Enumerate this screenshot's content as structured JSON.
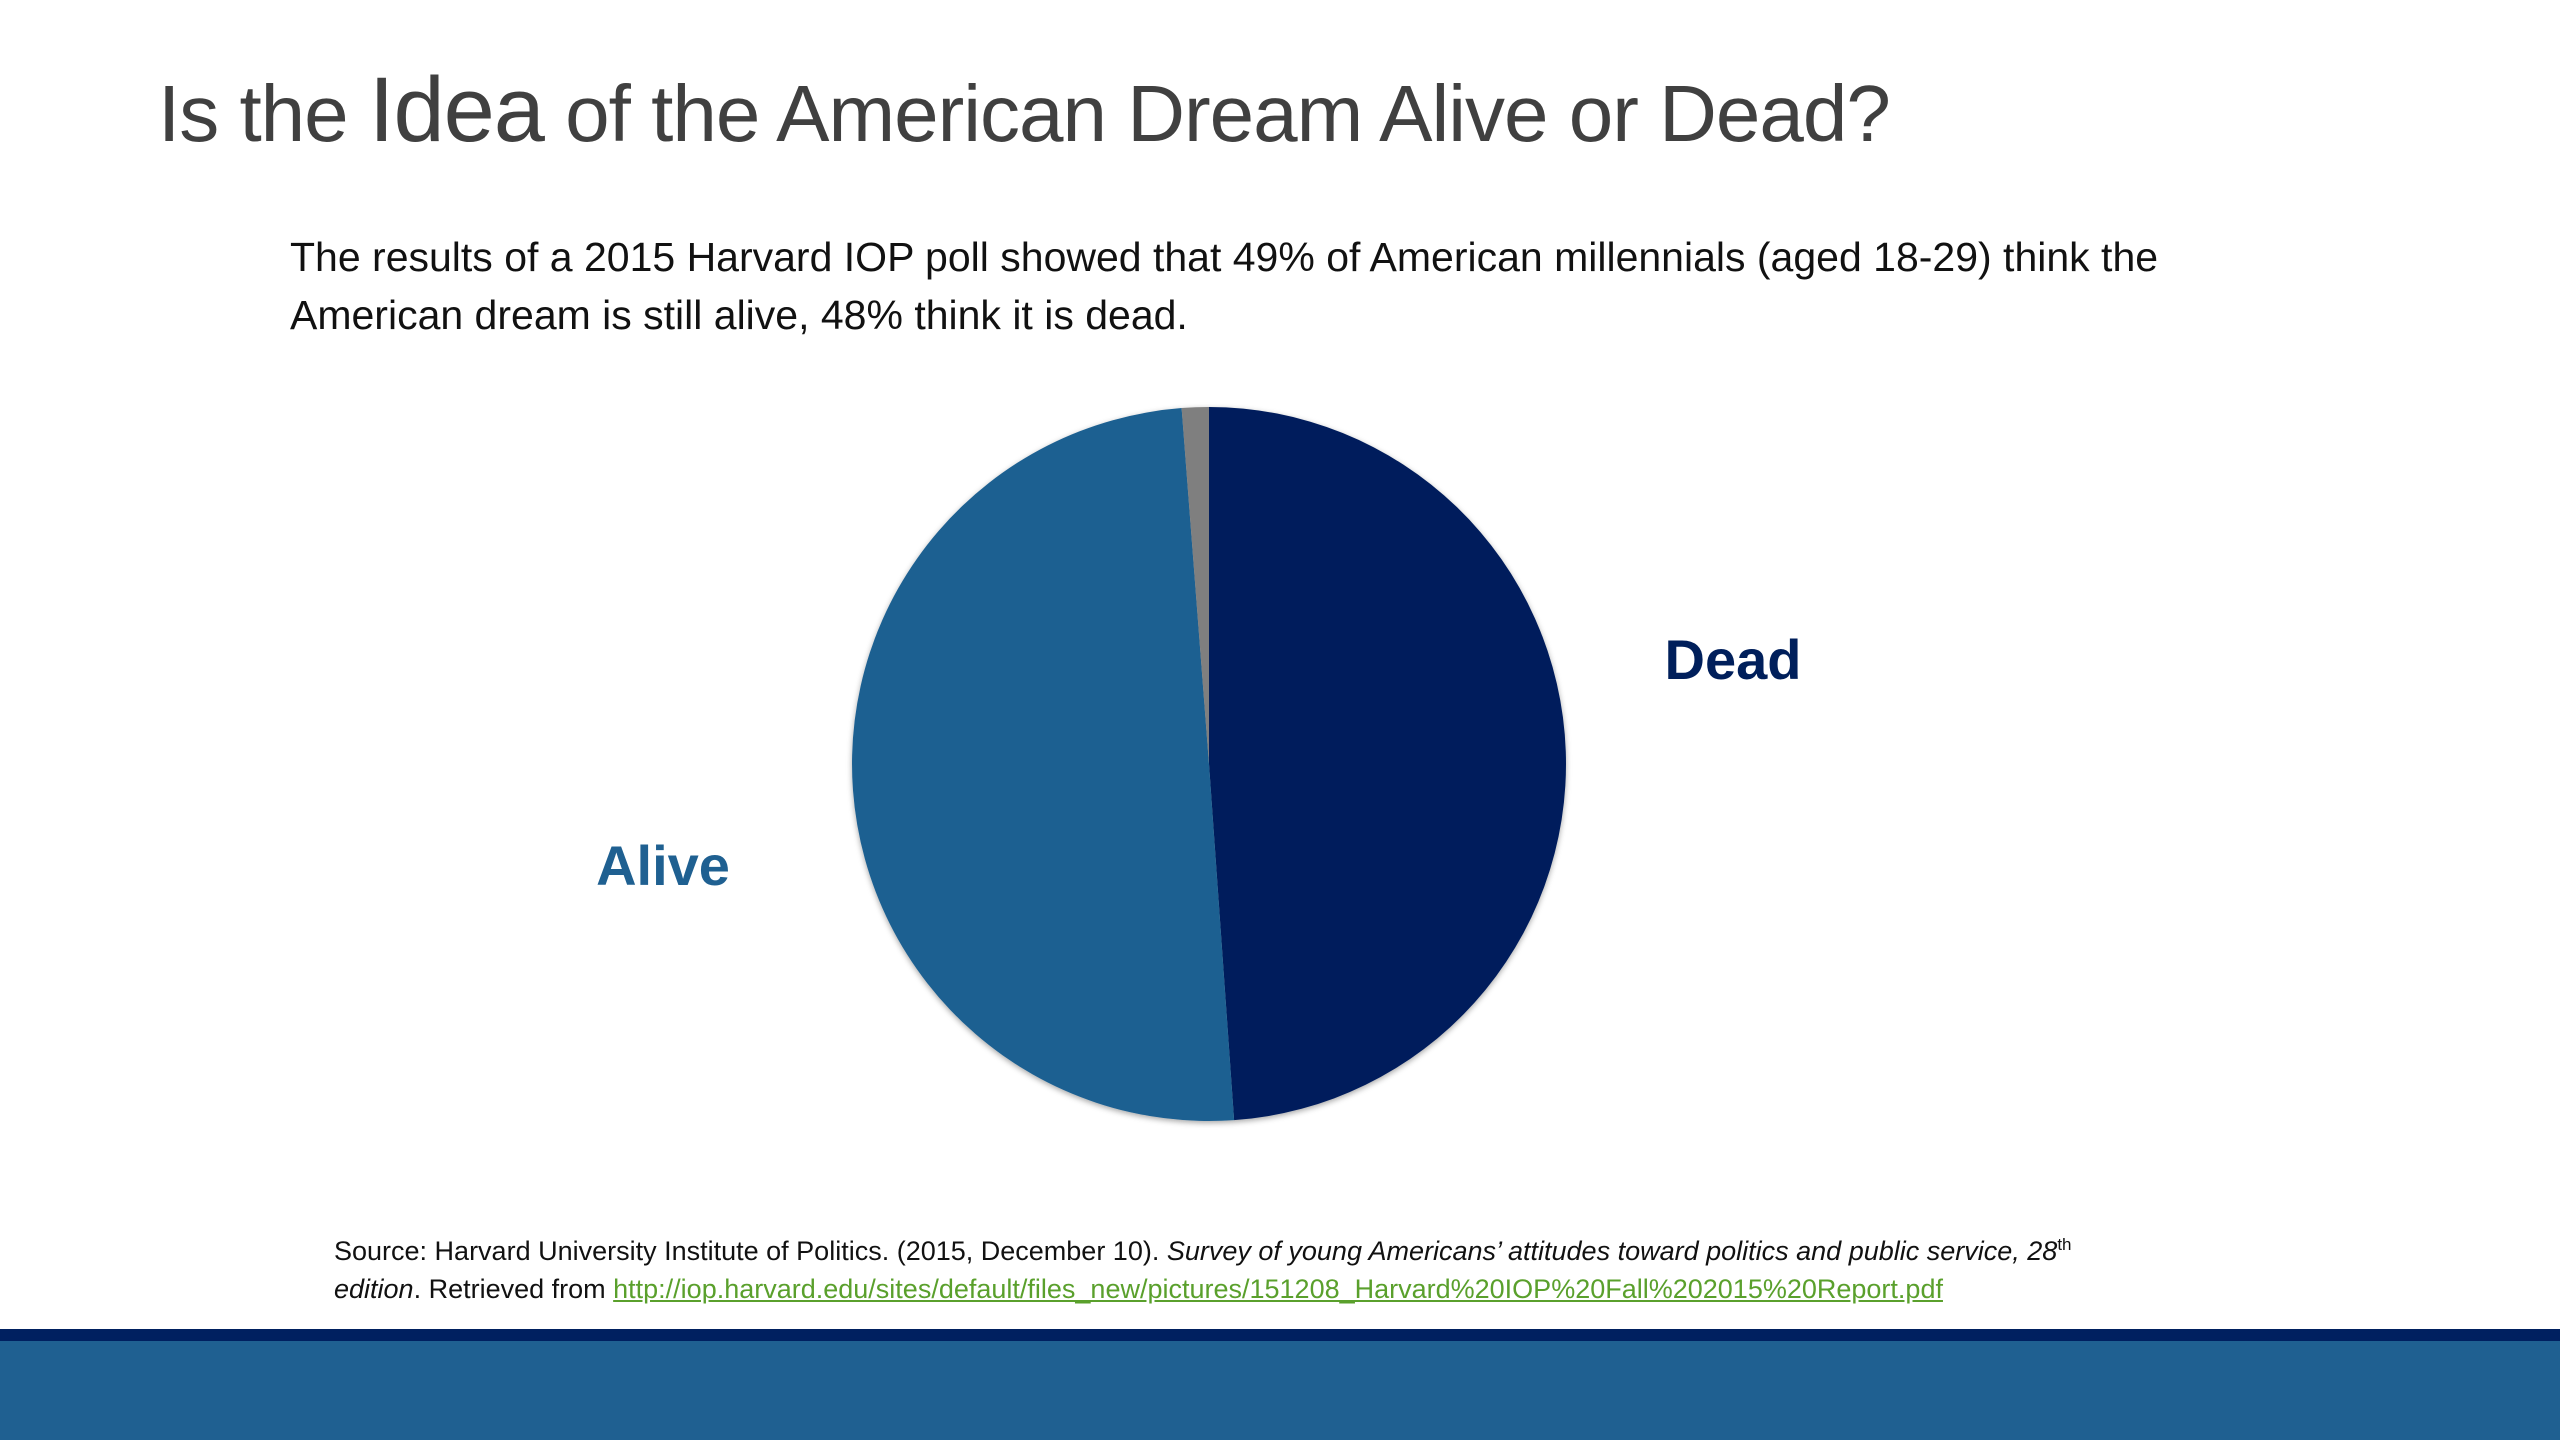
{
  "slide": {
    "title_part1": "Is the ",
    "title_emph": "Idea",
    "title_part2": " of the American Dream Alive or Dead?",
    "intro": "The results of a 2015 Harvard IOP poll showed that 49% of American millennials (aged 18-29) think the American dream is still alive, 48% think it is dead.",
    "source_prefix": "Source: Harvard University Institute of Politics. (2015, December 10). ",
    "source_title": "Survey of young Americans’ attitudes toward politics and public service, 28",
    "source_sup": "th",
    "source_edition": "edition",
    "source_retrieved": ". Retrieved from ",
    "source_url": "http://iop.harvard.edu/sites/default/files_new/pictures/151208_Harvard%20IOP%20Fall%202015%20Report.pdf"
  },
  "colors": {
    "dead": "#001f5b",
    "alive": "#1f6091",
    "other": "#7f7f7f",
    "title": "#404040",
    "footer_line": "#002060",
    "footer_band": "#1f6091"
  },
  "chart_data": {
    "type": "pie",
    "title": "",
    "start_angle_deg": 0,
    "direction": "clockwise",
    "slices": [
      {
        "label": "Dead",
        "value": 48,
        "color": "#001f5b"
      },
      {
        "label": "Alive",
        "value": 49,
        "color": "#1f6091"
      },
      {
        "label": "",
        "value": 1.2,
        "color": "#7f7f7f"
      }
    ]
  }
}
